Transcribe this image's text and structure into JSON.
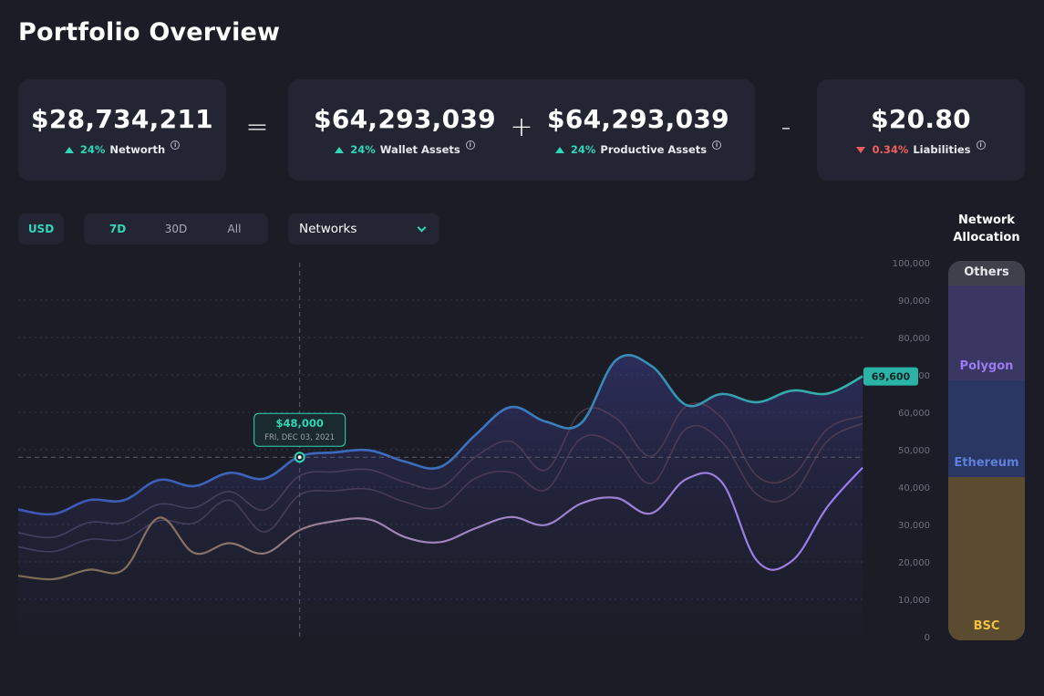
{
  "header": {
    "title": "Portfolio Overview"
  },
  "stats": [
    {
      "value": "$28,734,211",
      "change": "24%",
      "label": "Networth",
      "direction": "up"
    },
    {
      "value": "$64,293,039",
      "change": "24%",
      "label": "Wallet Assets",
      "direction": "up"
    },
    {
      "value": "$64,293,039",
      "change": "24%",
      "label": "Productive Assets",
      "direction": "up"
    },
    {
      "value": "$20.80",
      "change": "0.34%",
      "label": "Liabilities",
      "direction": "down"
    }
  ],
  "operators": {
    "equals": "=",
    "plus": "+",
    "minus": "-"
  },
  "info_glyph": "i",
  "controls": {
    "currency": "USD",
    "ranges": [
      "7D",
      "30D",
      "All"
    ],
    "active_range": "7D",
    "network_select": "Networks"
  },
  "tooltip": {
    "value": "$48,000",
    "date": "FRI, DEC 03, 2021"
  },
  "current_value_badge": "69,600",
  "allocation": {
    "title_line1": "Network",
    "title_line2": "Allocation",
    "segments": [
      {
        "label": "Others",
        "share": 0.065,
        "color": "#3e404c",
        "label_color": "#e6e6ea"
      },
      {
        "label": "Polygon",
        "share": 0.25,
        "color": "#3b3763",
        "label_color": "#9a7cf2"
      },
      {
        "label": "Ethereum",
        "share": 0.255,
        "color": "#2a3763",
        "label_color": "#5f7fdc"
      },
      {
        "label": "BSC",
        "share": 0.43,
        "color": "#5a4b31",
        "label_color": "#f2c041"
      }
    ]
  },
  "colors": {
    "accent": "#2ed8b8",
    "negative": "#f05f5f",
    "background": "#1b1c25",
    "card": "#232532",
    "networth_line_start": "#3c57b5",
    "networth_line_end": "#31b6a8",
    "polygon_line": "#9a7cf2"
  },
  "chart_data": {
    "type": "line",
    "y_ticks": [
      "100,000",
      "90,000",
      "80,000",
      "70,000",
      "60,000",
      "50,000",
      "40,000",
      "30,000",
      "20,000",
      "10,000",
      "0"
    ],
    "ylim": [
      0,
      100000
    ],
    "series": [
      {
        "values": [
          34000,
          32800,
          36500,
          36500,
          41900,
          40300,
          43800,
          42300,
          48200,
          49300,
          49800,
          46800,
          45400,
          54000,
          61400,
          57500,
          57100,
          74000,
          72400,
          61900,
          64900,
          62700,
          65800,
          65000,
          69600
        ]
      },
      {
        "values": [
          16300,
          15400,
          17900,
          18000,
          31800,
          22400,
          25000,
          22300,
          28500,
          30900,
          31300,
          26600,
          25300,
          29000,
          32000,
          29900,
          35600,
          37100,
          33000,
          42200,
          41300,
          20300,
          20300,
          34700,
          45200
        ]
      },
      {
        "values": [
          24000,
          22800,
          26000,
          26000,
          31000,
          30400,
          36500,
          28000,
          37900,
          39000,
          39400,
          36000,
          34600,
          42400,
          44000,
          39300,
          53000,
          51100,
          41000,
          55700,
          52100,
          38000,
          38000,
          52300,
          57000
        ]
      },
      {
        "values": [
          27800,
          26600,
          30500,
          30500,
          35400,
          34500,
          38800,
          33900,
          43000,
          44100,
          44600,
          41300,
          39900,
          48100,
          52200,
          44600,
          60100,
          58400,
          48300,
          61700,
          58500,
          43000,
          43000,
          55500,
          59000
        ]
      }
    ],
    "highlight": {
      "value": 48000,
      "label": "$48,000",
      "date": "FRI, DEC 03, 2021"
    },
    "current": 69600
  }
}
